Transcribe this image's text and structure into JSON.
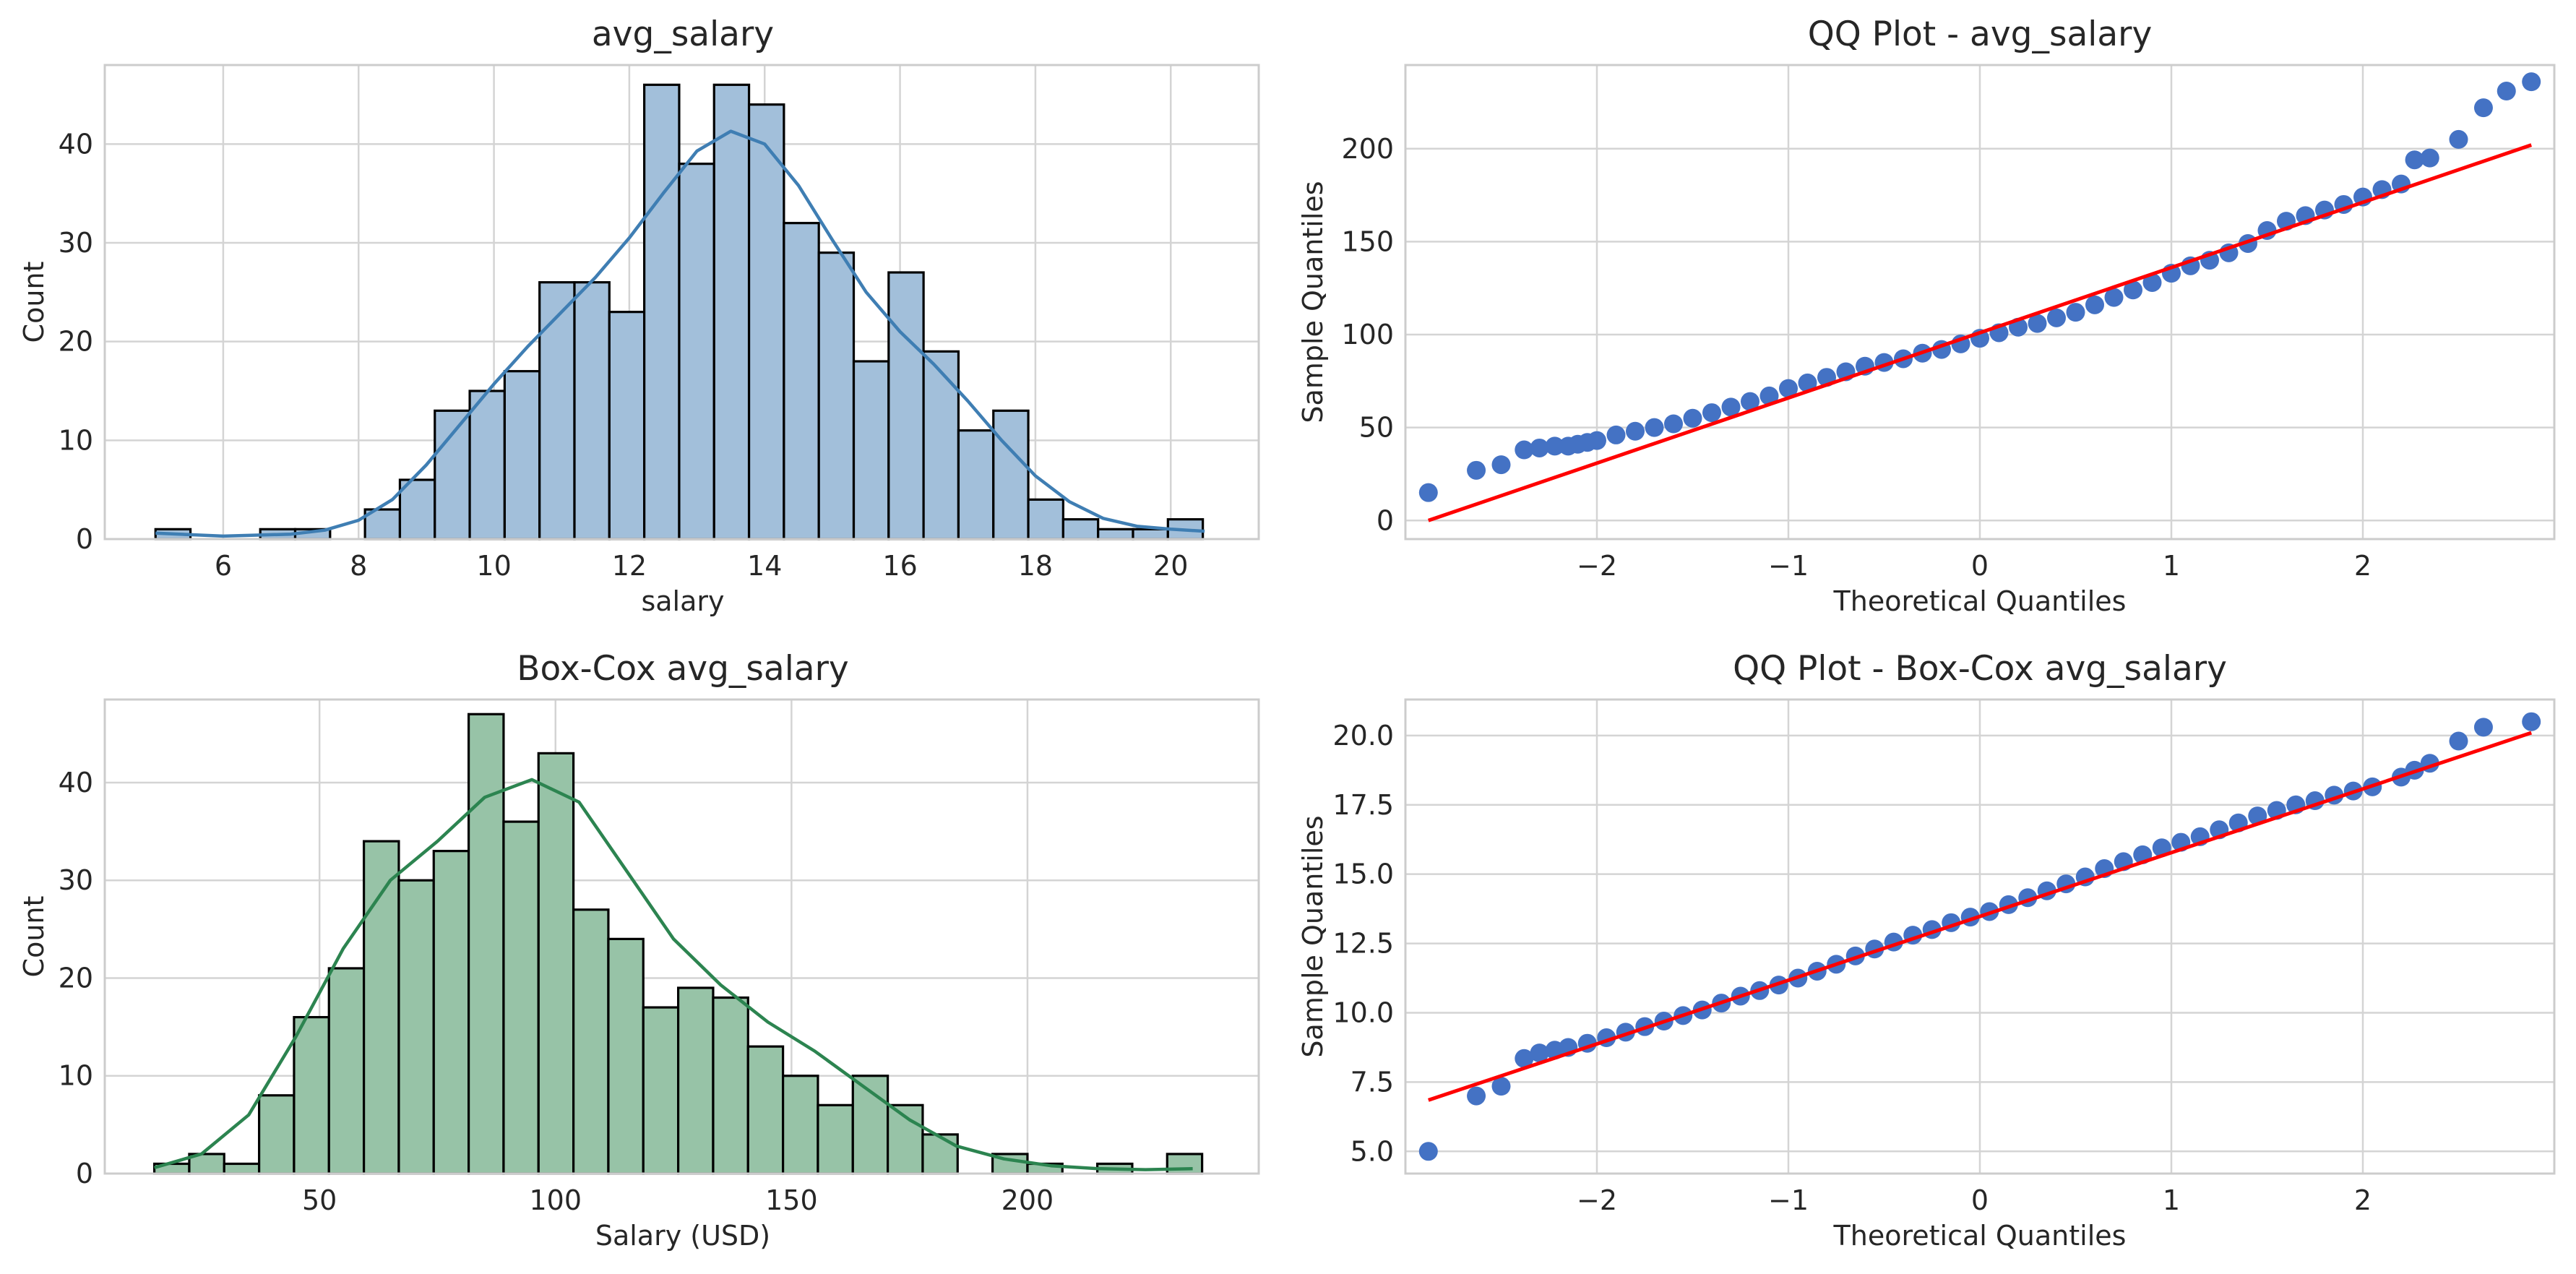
{
  "figure": {
    "layout": "2x2 grid",
    "style": "whitegrid",
    "background": "#ffffff"
  },
  "chart_data": [
    {
      "type": "histogram",
      "title": "avg_salary",
      "xlabel": "salary",
      "ylabel": "Count",
      "xlim": [
        4.25,
        21.3
      ],
      "ylim": [
        0,
        48
      ],
      "xticks": [
        6,
        8,
        10,
        12,
        14,
        16,
        18,
        20
      ],
      "yticks": [
        0,
        10,
        20,
        30,
        40
      ],
      "bar_color": "#a2bfda",
      "edge_color": "#000000",
      "kde_color": "#3f7eb3",
      "bin_start": 5.0,
      "bin_width": 0.5158,
      "counts": [
        1,
        0,
        0,
        1,
        1,
        0,
        3,
        6,
        13,
        15,
        17,
        26,
        26,
        23,
        46,
        38,
        46,
        44,
        32,
        29,
        18,
        27,
        19,
        11,
        13,
        4,
        2,
        1,
        1,
        2
      ],
      "kde": {
        "x": [
          5,
          6,
          7,
          7.5,
          8,
          8.5,
          9,
          9.5,
          10,
          10.5,
          11,
          11.5,
          12,
          12.5,
          13,
          13.5,
          14,
          14.5,
          15,
          15.5,
          16,
          16.5,
          17,
          17.5,
          18,
          18.5,
          19,
          19.5,
          20,
          20.5
        ],
        "y": [
          0.6,
          0.3,
          0.5,
          0.9,
          1.9,
          4.0,
          7.5,
          11.6,
          15.7,
          19.5,
          23.0,
          26.5,
          30.5,
          35.0,
          39.3,
          41.3,
          40.0,
          35.8,
          30.3,
          25.0,
          21.0,
          17.7,
          14.0,
          10.0,
          6.4,
          3.8,
          2.1,
          1.3,
          1.0,
          0.8
        ]
      }
    },
    {
      "type": "scatter",
      "title": "QQ Plot - avg_salary",
      "xlabel": "Theoretical Quantiles",
      "ylabel": "Sample Quantiles",
      "xlim": [
        -3.0,
        3.0
      ],
      "ylim": [
        -10,
        245
      ],
      "xticks": [
        -2,
        -1,
        0,
        1,
        2
      ],
      "xtick_labels": [
        "−2",
        "−1",
        "0",
        "1",
        "2"
      ],
      "yticks": [
        0,
        50,
        100,
        150,
        200
      ],
      "point_color": "#4472c4",
      "line_color": "#ff0000",
      "reference_line": {
        "x": [
          -2.88,
          2.88
        ],
        "y": [
          0,
          202
        ]
      },
      "points": [
        [
          -2.88,
          15
        ],
        [
          -2.63,
          27
        ],
        [
          -2.5,
          30
        ],
        [
          -2.38,
          38
        ],
        [
          -2.3,
          39
        ],
        [
          -2.22,
          40
        ],
        [
          -2.15,
          40
        ],
        [
          -2.1,
          41
        ],
        [
          -2.05,
          42
        ],
        [
          -2.0,
          43
        ],
        [
          -1.9,
          46
        ],
        [
          -1.8,
          48
        ],
        [
          -1.7,
          50
        ],
        [
          -1.6,
          52
        ],
        [
          -1.5,
          55
        ],
        [
          -1.4,
          58
        ],
        [
          -1.3,
          61
        ],
        [
          -1.2,
          64
        ],
        [
          -1.1,
          67
        ],
        [
          -1.0,
          71
        ],
        [
          -0.9,
          74
        ],
        [
          -0.8,
          77
        ],
        [
          -0.7,
          80
        ],
        [
          -0.6,
          83
        ],
        [
          -0.5,
          85
        ],
        [
          -0.4,
          87
        ],
        [
          -0.3,
          90
        ],
        [
          -0.2,
          92
        ],
        [
          -0.1,
          95
        ],
        [
          0.0,
          98
        ],
        [
          0.1,
          101
        ],
        [
          0.2,
          104
        ],
        [
          0.3,
          106
        ],
        [
          0.4,
          109
        ],
        [
          0.5,
          112
        ],
        [
          0.6,
          116
        ],
        [
          0.7,
          120
        ],
        [
          0.8,
          124
        ],
        [
          0.9,
          128
        ],
        [
          1.0,
          133
        ],
        [
          1.1,
          137
        ],
        [
          1.2,
          140
        ],
        [
          1.3,
          144
        ],
        [
          1.4,
          149
        ],
        [
          1.5,
          156
        ],
        [
          1.6,
          161
        ],
        [
          1.7,
          164
        ],
        [
          1.8,
          167
        ],
        [
          1.9,
          170
        ],
        [
          2.0,
          174
        ],
        [
          2.1,
          178
        ],
        [
          2.2,
          181
        ],
        [
          2.27,
          194
        ],
        [
          2.35,
          195
        ],
        [
          2.5,
          205
        ],
        [
          2.63,
          222
        ],
        [
          2.75,
          231
        ],
        [
          2.88,
          236
        ]
      ]
    },
    {
      "type": "histogram",
      "title": "Box-Cox avg_salary",
      "xlabel": "Salary (USD)",
      "ylabel": "Count",
      "xlim": [
        4.5,
        249
      ],
      "ylim": [
        0,
        48.5
      ],
      "xticks": [
        50,
        100,
        150,
        200
      ],
      "yticks": [
        0,
        10,
        20,
        30,
        40
      ],
      "bar_color": "#97c3a7",
      "edge_color": "#000000",
      "kde_color": "#2c8450",
      "bin_start": 15,
      "bin_width": 7.4,
      "counts": [
        1,
        2,
        1,
        8,
        16,
        21,
        34,
        30,
        33,
        47,
        36,
        43,
        27,
        24,
        17,
        19,
        18,
        13,
        10,
        7,
        10,
        7,
        4,
        0,
        2,
        1,
        0,
        1,
        0,
        2
      ],
      "kde": {
        "x": [
          15,
          25,
          35,
          45,
          55,
          65,
          75,
          85,
          95,
          105,
          115,
          125,
          135,
          145,
          155,
          165,
          175,
          185,
          195,
          205,
          215,
          225,
          235
        ],
        "y": [
          0.6,
          2.0,
          6.0,
          14.0,
          23.0,
          30.0,
          34.0,
          38.5,
          40.3,
          38.0,
          31.0,
          24.0,
          19.3,
          15.5,
          12.5,
          9.0,
          5.5,
          2.8,
          1.5,
          0.8,
          0.5,
          0.4,
          0.5
        ]
      }
    },
    {
      "type": "scatter",
      "title": "QQ Plot - Box-Cox avg_salary",
      "xlabel": "Theoretical Quantiles",
      "ylabel": "Sample Quantiles",
      "xlim": [
        -3.0,
        3.0
      ],
      "ylim": [
        4.2,
        21.3
      ],
      "xticks": [
        -2,
        -1,
        0,
        1,
        2
      ],
      "xtick_labels": [
        "−2",
        "−1",
        "0",
        "1",
        "2"
      ],
      "yticks": [
        5.0,
        7.5,
        10.0,
        12.5,
        15.0,
        17.5,
        20.0
      ],
      "ytick_labels": [
        "5.0",
        "7.5",
        "10.0",
        "12.5",
        "15.0",
        "17.5",
        "20.0"
      ],
      "point_color": "#4472c4",
      "line_color": "#ff0000",
      "reference_line": {
        "x": [
          -2.88,
          2.88
        ],
        "y": [
          6.85,
          20.1
        ]
      },
      "points": [
        [
          -2.88,
          5.0
        ],
        [
          -2.63,
          7.0
        ],
        [
          -2.5,
          7.35
        ],
        [
          -2.38,
          8.35
        ],
        [
          -2.3,
          8.55
        ],
        [
          -2.22,
          8.65
        ],
        [
          -2.15,
          8.75
        ],
        [
          -2.05,
          8.9
        ],
        [
          -1.95,
          9.1
        ],
        [
          -1.85,
          9.3
        ],
        [
          -1.75,
          9.5
        ],
        [
          -1.65,
          9.7
        ],
        [
          -1.55,
          9.9
        ],
        [
          -1.45,
          10.1
        ],
        [
          -1.35,
          10.35
        ],
        [
          -1.25,
          10.6
        ],
        [
          -1.15,
          10.8
        ],
        [
          -1.05,
          11.0
        ],
        [
          -0.95,
          11.25
        ],
        [
          -0.85,
          11.5
        ],
        [
          -0.75,
          11.75
        ],
        [
          -0.65,
          12.05
        ],
        [
          -0.55,
          12.3
        ],
        [
          -0.45,
          12.55
        ],
        [
          -0.35,
          12.8
        ],
        [
          -0.25,
          13.0
        ],
        [
          -0.15,
          13.25
        ],
        [
          -0.05,
          13.45
        ],
        [
          0.05,
          13.65
        ],
        [
          0.15,
          13.9
        ],
        [
          0.25,
          14.15
        ],
        [
          0.35,
          14.4
        ],
        [
          0.45,
          14.65
        ],
        [
          0.55,
          14.9
        ],
        [
          0.65,
          15.2
        ],
        [
          0.75,
          15.45
        ],
        [
          0.85,
          15.7
        ],
        [
          0.95,
          15.95
        ],
        [
          1.05,
          16.15
        ],
        [
          1.15,
          16.35
        ],
        [
          1.25,
          16.6
        ],
        [
          1.35,
          16.85
        ],
        [
          1.45,
          17.1
        ],
        [
          1.55,
          17.3
        ],
        [
          1.65,
          17.5
        ],
        [
          1.75,
          17.65
        ],
        [
          1.85,
          17.85
        ],
        [
          1.95,
          18.0
        ],
        [
          2.05,
          18.15
        ],
        [
          2.2,
          18.5
        ],
        [
          2.27,
          18.75
        ],
        [
          2.35,
          19.0
        ],
        [
          2.5,
          19.8
        ],
        [
          2.63,
          20.3
        ],
        [
          2.88,
          20.5
        ]
      ]
    }
  ]
}
